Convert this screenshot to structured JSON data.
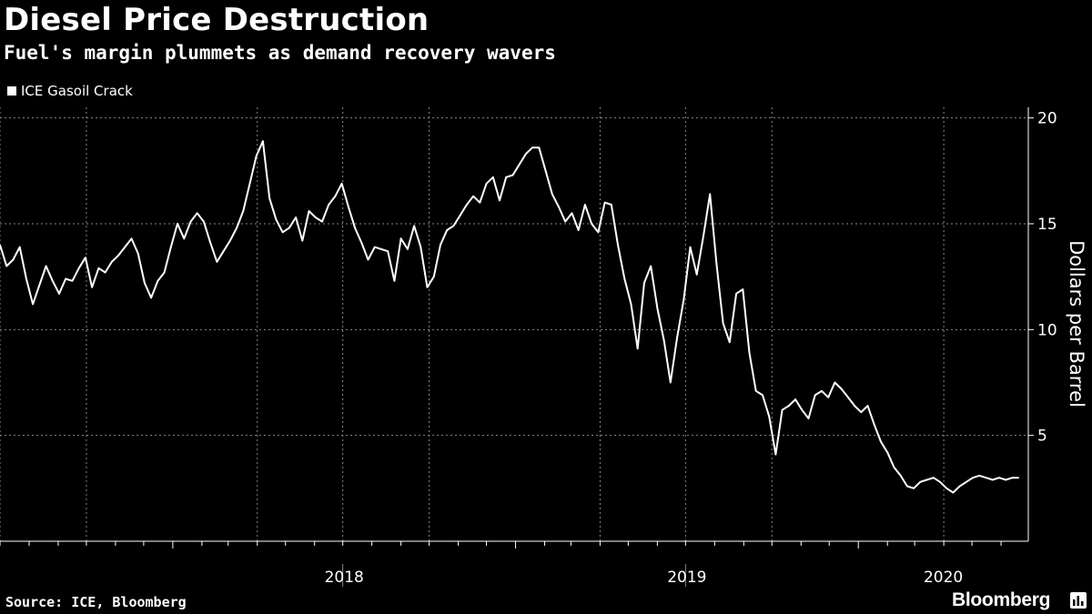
{
  "header": {
    "title": "Diesel Price Destruction",
    "subtitle": "Fuel's margin plummets as demand recovery wavers"
  },
  "footer": {
    "source": "Source: ICE, Bloomberg",
    "brand": "Bloomberg",
    "brand_icon": "bar-chart-icon"
  },
  "colors": {
    "background": "#000000",
    "line": "#ffffff",
    "grid": "#888888"
  },
  "chart_data": {
    "type": "line",
    "title": "Diesel Price Destruction",
    "subtitle": "Fuel's margin plummets as demand recovery wavers",
    "ylabel": "Dollars per Barrel",
    "ylim": [
      0,
      20.5
    ],
    "xlim": [
      "2017-07-01",
      "2020-06-30"
    ],
    "y_ticks": [
      5,
      10,
      15,
      20
    ],
    "y_axis_position": "right",
    "x_tick_labels": [
      "2018",
      "2019",
      "2020"
    ],
    "grid": true,
    "legend_position": "top-left",
    "series": [
      {
        "name": "ICE Gasoil Crack",
        "x": [
          "2017-07-01",
          "2017-07-08",
          "2017-07-15",
          "2017-07-22",
          "2017-07-29",
          "2017-08-05",
          "2017-08-12",
          "2017-08-19",
          "2017-08-26",
          "2017-09-02",
          "2017-09-09",
          "2017-09-16",
          "2017-09-23",
          "2017-09-30",
          "2017-10-07",
          "2017-10-14",
          "2017-10-21",
          "2017-10-28",
          "2017-11-04",
          "2017-11-11",
          "2017-11-18",
          "2017-11-25",
          "2017-12-02",
          "2017-12-09",
          "2017-12-16",
          "2017-12-23",
          "2017-12-30",
          "2018-01-06",
          "2018-01-13",
          "2018-01-20",
          "2018-01-27",
          "2018-02-03",
          "2018-02-10",
          "2018-02-17",
          "2018-02-24",
          "2018-03-03",
          "2018-03-10",
          "2018-03-17",
          "2018-03-24",
          "2018-03-31",
          "2018-04-07",
          "2018-04-14",
          "2018-04-21",
          "2018-04-28",
          "2018-05-05",
          "2018-05-12",
          "2018-05-19",
          "2018-05-26",
          "2018-06-02",
          "2018-06-09",
          "2018-06-16",
          "2018-06-23",
          "2018-06-30",
          "2018-07-07",
          "2018-07-14",
          "2018-07-21",
          "2018-07-28",
          "2018-08-04",
          "2018-08-11",
          "2018-08-18",
          "2018-08-25",
          "2018-09-01",
          "2018-09-08",
          "2018-09-15",
          "2018-09-22",
          "2018-09-29",
          "2018-10-06",
          "2018-10-13",
          "2018-10-20",
          "2018-10-27",
          "2018-11-03",
          "2018-11-10",
          "2018-11-17",
          "2018-11-24",
          "2018-12-01",
          "2018-12-08",
          "2018-12-15",
          "2018-12-22",
          "2018-12-29",
          "2019-01-05",
          "2019-01-12",
          "2019-01-19",
          "2019-01-26",
          "2019-02-02",
          "2019-02-09",
          "2019-02-16",
          "2019-02-23",
          "2019-03-02",
          "2019-03-09",
          "2019-03-16",
          "2019-03-23",
          "2019-03-30",
          "2019-04-06",
          "2019-04-13",
          "2019-04-20",
          "2019-04-27",
          "2019-05-04",
          "2019-05-11",
          "2019-05-18",
          "2019-05-25",
          "2019-06-01",
          "2019-06-08",
          "2019-06-15",
          "2019-06-22",
          "2019-06-29",
          "2019-07-06",
          "2019-07-13",
          "2019-07-20",
          "2019-07-27",
          "2019-08-03",
          "2019-08-10",
          "2019-08-17",
          "2019-08-24",
          "2019-08-31",
          "2019-09-07",
          "2019-09-14",
          "2019-09-21",
          "2019-09-28",
          "2019-10-05",
          "2019-10-12",
          "2019-10-19",
          "2019-10-26",
          "2019-11-02",
          "2019-11-09",
          "2019-11-16",
          "2019-11-23",
          "2019-11-30",
          "2019-12-07",
          "2019-12-14",
          "2019-12-21",
          "2019-12-28",
          "2020-01-04",
          "2020-01-11",
          "2020-01-18",
          "2020-01-25",
          "2020-02-01",
          "2020-02-08",
          "2020-02-15",
          "2020-02-22",
          "2020-02-29",
          "2020-03-07",
          "2020-03-14",
          "2020-03-21",
          "2020-03-28",
          "2020-04-04",
          "2020-04-11",
          "2020-04-18",
          "2020-04-25",
          "2020-05-02",
          "2020-05-09",
          "2020-05-16",
          "2020-05-23",
          "2020-05-30",
          "2020-06-06",
          "2020-06-13",
          "2020-06-20"
        ],
        "values": [
          14.0,
          13.0,
          13.3,
          13.9,
          12.4,
          11.2,
          12.1,
          13.0,
          12.3,
          11.7,
          12.4,
          12.3,
          12.9,
          13.4,
          12.0,
          12.9,
          12.7,
          13.2,
          13.5,
          13.9,
          14.3,
          13.6,
          12.2,
          11.5,
          12.3,
          12.7,
          13.9,
          15.0,
          14.3,
          15.1,
          15.5,
          15.1,
          14.1,
          13.2,
          13.7,
          14.2,
          14.8,
          15.6,
          16.9,
          18.2,
          18.9,
          16.2,
          15.2,
          14.6,
          14.8,
          15.3,
          14.2,
          15.6,
          15.3,
          15.1,
          15.9,
          16.3,
          16.9,
          15.8,
          14.8,
          14.1,
          13.3,
          13.9,
          13.8,
          13.7,
          12.3,
          14.3,
          13.8,
          14.9,
          13.9,
          12.0,
          12.5,
          14.0,
          14.7,
          14.9,
          15.4,
          15.9,
          16.3,
          16.0,
          16.9,
          17.2,
          16.1,
          17.2,
          17.3,
          17.8,
          18.3,
          18.6,
          18.6,
          17.5,
          16.4,
          15.8,
          15.1,
          15.5,
          14.7,
          15.9,
          15.0,
          14.6,
          16.0,
          15.9,
          14.0,
          12.4,
          11.2,
          9.1,
          12.2,
          13.0,
          11.0,
          9.5,
          7.5,
          9.6,
          11.4,
          13.9,
          12.6,
          14.4,
          16.4,
          13.1,
          10.3,
          9.4,
          11.7,
          11.9,
          8.9,
          7.1,
          6.9,
          5.9,
          4.1,
          6.2,
          6.4,
          6.7,
          6.2,
          5.8,
          6.9,
          7.1,
          6.8,
          7.5,
          7.2,
          6.8,
          6.4,
          6.1,
          6.4,
          5.5,
          4.7,
          4.2,
          3.5,
          3.1,
          2.6,
          2.5,
          2.8,
          2.9,
          3.0,
          2.8,
          2.5,
          2.3,
          2.6,
          2.8,
          3.0,
          3.1,
          3.0,
          2.9,
          3.0,
          2.9,
          3.0,
          3.0
        ]
      }
    ]
  }
}
